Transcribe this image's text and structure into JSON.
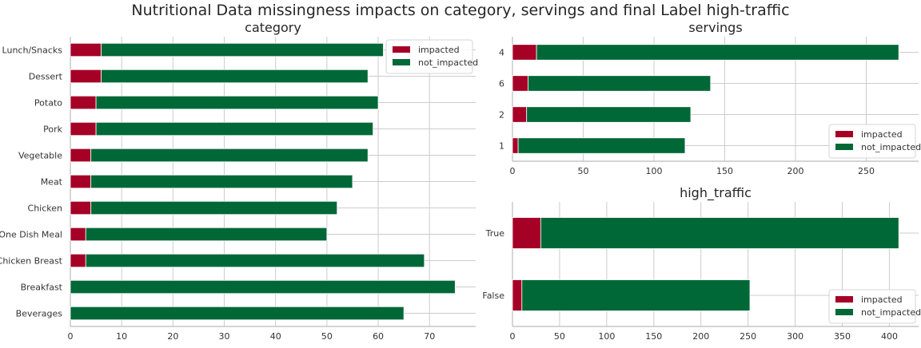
{
  "suptitle": "Nutritional Data missingness impacts on category, servings and final Label high-traffic",
  "colors": {
    "impacted": "#a50026",
    "not_impacted": "#006837",
    "grid": "#cccccc",
    "axis": "#bbbbbb",
    "text": "#333333"
  },
  "chart_data": [
    {
      "type": "bar",
      "orientation": "horizontal",
      "stacked": true,
      "title": "category",
      "categories": [
        "Beverages",
        "Breakfast",
        "Chicken Breast",
        "One Dish Meal",
        "Chicken",
        "Meat",
        "Vegetable",
        "Pork",
        "Potato",
        "Dessert",
        "Lunch/Snacks"
      ],
      "series": [
        {
          "name": "impacted",
          "values": [
            0,
            0,
            3,
            3,
            4,
            4,
            4,
            5,
            5,
            6,
            6
          ]
        },
        {
          "name": "not_impacted",
          "values": [
            65,
            75,
            66,
            47,
            48,
            51,
            54,
            54,
            55,
            52,
            55
          ]
        }
      ],
      "xlim": [
        0,
        79
      ],
      "xticks": [
        0,
        10,
        20,
        30,
        40,
        50,
        60,
        70
      ],
      "grid": true,
      "legend": "top-right"
    },
    {
      "type": "bar",
      "orientation": "horizontal",
      "stacked": true,
      "title": "servings",
      "categories": [
        "1",
        "2",
        "6",
        "4"
      ],
      "series": [
        {
          "name": "impacted",
          "values": [
            4,
            10,
            11,
            17
          ]
        },
        {
          "name": "not_impacted",
          "values": [
            118,
            116,
            129,
            256
          ]
        }
      ],
      "xlim": [
        0,
        287
      ],
      "xticks": [
        0,
        50,
        100,
        150,
        200,
        250
      ],
      "grid": true,
      "legend": "bottom-right"
    },
    {
      "type": "bar",
      "orientation": "horizontal",
      "stacked": true,
      "title": "high_traffic",
      "categories": [
        "False",
        "True"
      ],
      "series": [
        {
          "name": "impacted",
          "values": [
            10,
            30
          ]
        },
        {
          "name": "not_impacted",
          "values": [
            242,
            380
          ]
        }
      ],
      "xlim": [
        0,
        431
      ],
      "xticks": [
        0,
        50,
        100,
        150,
        200,
        250,
        300,
        350,
        400
      ],
      "grid": true,
      "legend": "bottom-right"
    }
  ]
}
